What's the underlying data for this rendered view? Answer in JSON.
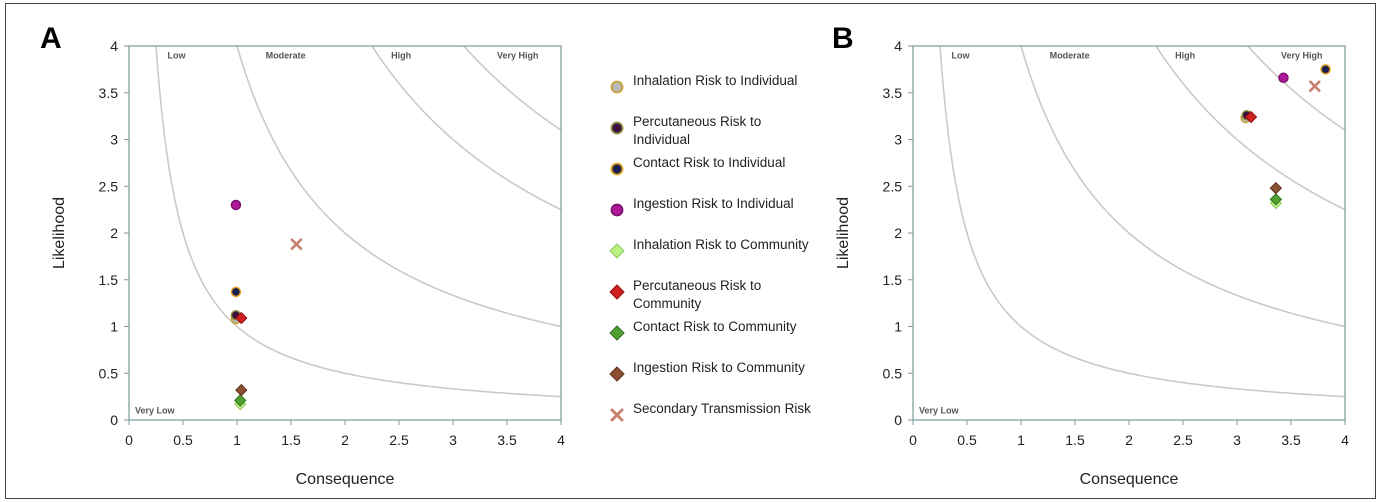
{
  "panels": [
    {
      "letter": "A"
    },
    {
      "letter": "B"
    }
  ],
  "legend": [
    {
      "label": "Inhalation Risk to Individual",
      "marker": "circle",
      "fill": "#b8b8b8",
      "stroke": "#c9a030"
    },
    {
      "label": "Percutaneous Risk to Individual",
      "marker": "circle",
      "fill": "#3a1040",
      "stroke": "#8a8a40"
    },
    {
      "label": "Contact Risk to Individual",
      "marker": "circle",
      "fill": "#1a2050",
      "stroke": "#e0a020"
    },
    {
      "label": "Ingestion Risk to Individual",
      "marker": "circle",
      "fill": "#b0189a",
      "stroke": "#7a1070"
    },
    {
      "label": "Inhalation Risk to Community",
      "marker": "diamond",
      "fill": "#b8f080",
      "stroke": "#90c860"
    },
    {
      "label": "Percutaneous Risk to Community",
      "marker": "diamond",
      "fill": "#d02020",
      "stroke": "#901010"
    },
    {
      "label": "Contact Risk to Community",
      "marker": "diamond",
      "fill": "#50a030",
      "stroke": "#307020"
    },
    {
      "label": "Ingestion Risk to Community",
      "marker": "diamond",
      "fill": "#8a5030",
      "stroke": "#603020"
    },
    {
      "label": "Secondary Transmission Risk",
      "marker": "x",
      "fill": "#c88070",
      "stroke": "#c88070"
    }
  ],
  "chart_data": [
    {
      "type": "scatter",
      "xlabel": "Consequence",
      "ylabel": "Likelihood",
      "xlim": [
        0,
        4
      ],
      "ylim": [
        0,
        4
      ],
      "xticks": [
        "0",
        "0.5",
        "1",
        "1.5",
        "2",
        "2.5",
        "3",
        "3.5",
        "4"
      ],
      "yticks": [
        "0",
        "0.5",
        "1",
        "1.5",
        "2",
        "2.5",
        "3",
        "3.5",
        "4"
      ],
      "zones": [
        "Very Low",
        "Low",
        "Moderate",
        "High",
        "Very High"
      ],
      "zone_curves": [
        1,
        4,
        9,
        12.4
      ],
      "series": [
        {
          "name": "Inhalation Risk to Individual",
          "x": 0.99,
          "y": 1.08
        },
        {
          "name": "Percutaneous Risk to Individual",
          "x": 0.99,
          "y": 1.12
        },
        {
          "name": "Contact Risk to Individual",
          "x": 0.99,
          "y": 1.37
        },
        {
          "name": "Ingestion Risk to Individual",
          "x": 0.99,
          "y": 2.3
        },
        {
          "name": "Inhalation Risk to Community",
          "x": 1.03,
          "y": 0.17
        },
        {
          "name": "Percutaneous Risk to Community",
          "x": 1.04,
          "y": 1.09
        },
        {
          "name": "Contact Risk to Community",
          "x": 1.03,
          "y": 0.21
        },
        {
          "name": "Ingestion Risk to Community",
          "x": 1.04,
          "y": 0.32
        },
        {
          "name": "Secondary Transmission Risk",
          "x": 1.55,
          "y": 1.88
        }
      ]
    },
    {
      "type": "scatter",
      "xlabel": "Consequence",
      "ylabel": "Likelihood",
      "xlim": [
        0,
        4
      ],
      "ylim": [
        0,
        4
      ],
      "xticks": [
        "0",
        "0.5",
        "1",
        "1.5",
        "2",
        "2.5",
        "3",
        "3.5",
        "4"
      ],
      "yticks": [
        "0",
        "0.5",
        "1",
        "1.5",
        "2",
        "2.5",
        "3",
        "3.5",
        "4"
      ],
      "zones": [
        "Very Low",
        "Low",
        "Moderate",
        "High",
        "Very High"
      ],
      "zone_curves": [
        1,
        4,
        9,
        12.4
      ],
      "series": [
        {
          "name": "Inhalation Risk to Individual",
          "x": 3.08,
          "y": 3.23
        },
        {
          "name": "Percutaneous Risk to Individual",
          "x": 3.09,
          "y": 3.26
        },
        {
          "name": "Contact Risk to Individual",
          "x": 3.82,
          "y": 3.75
        },
        {
          "name": "Ingestion Risk to Individual",
          "x": 3.43,
          "y": 3.66
        },
        {
          "name": "Inhalation Risk to Community",
          "x": 3.36,
          "y": 2.32
        },
        {
          "name": "Percutaneous Risk to Community",
          "x": 3.13,
          "y": 3.24
        },
        {
          "name": "Contact Risk to Community",
          "x": 3.36,
          "y": 2.36
        },
        {
          "name": "Ingestion Risk to Community",
          "x": 3.36,
          "y": 2.48
        },
        {
          "name": "Secondary Transmission Risk",
          "x": 3.72,
          "y": 3.57
        }
      ]
    }
  ]
}
